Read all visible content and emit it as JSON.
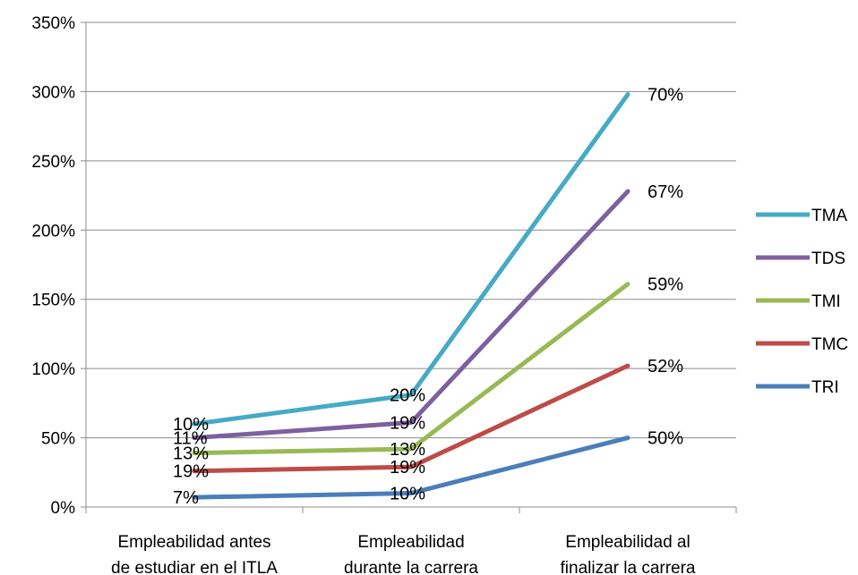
{
  "chart_data": {
    "type": "line",
    "stacked": true,
    "title": "",
    "xlabel": "",
    "ylabel": "",
    "ylim": [
      0,
      3.5
    ],
    "y_ticks": [
      "0%",
      "50%",
      "100%",
      "150%",
      "200%",
      "250%",
      "300%",
      "350%"
    ],
    "y_tick_values": [
      0,
      0.5,
      1.0,
      1.5,
      2.0,
      2.5,
      3.0,
      3.5
    ],
    "categories": [
      [
        "Empleabilidad antes",
        "de estudiar en el ITLA"
      ],
      [
        "Empleabilidad",
        "durante la carrera"
      ],
      [
        "Empleabilidad al",
        "finalizar la carrera"
      ]
    ],
    "grid": true,
    "legend_position": "right",
    "series": [
      {
        "name": "TRI",
        "color": "#4a7ebb",
        "values": [
          0.07,
          0.1,
          0.5
        ],
        "labels": [
          "7%",
          "10%",
          "50%"
        ]
      },
      {
        "name": "TMC",
        "color": "#be4b48",
        "values": [
          0.19,
          0.19,
          0.52
        ],
        "labels": [
          "19%",
          "19%",
          "52%"
        ]
      },
      {
        "name": "TMI",
        "color": "#98b954",
        "values": [
          0.13,
          0.13,
          0.59
        ],
        "labels": [
          "13%",
          "13%",
          "59%"
        ]
      },
      {
        "name": "TDS",
        "color": "#7d60a0",
        "values": [
          0.11,
          0.19,
          0.67
        ],
        "labels": [
          "11%",
          "19%",
          "67%"
        ]
      },
      {
        "name": "TMA",
        "color": "#46aac5",
        "values": [
          0.1,
          0.2,
          0.7
        ],
        "labels": [
          "10%",
          "20%",
          "70%"
        ]
      }
    ],
    "legend_order": [
      "TMA",
      "TDS",
      "TMI",
      "TMC",
      "TRI"
    ]
  }
}
